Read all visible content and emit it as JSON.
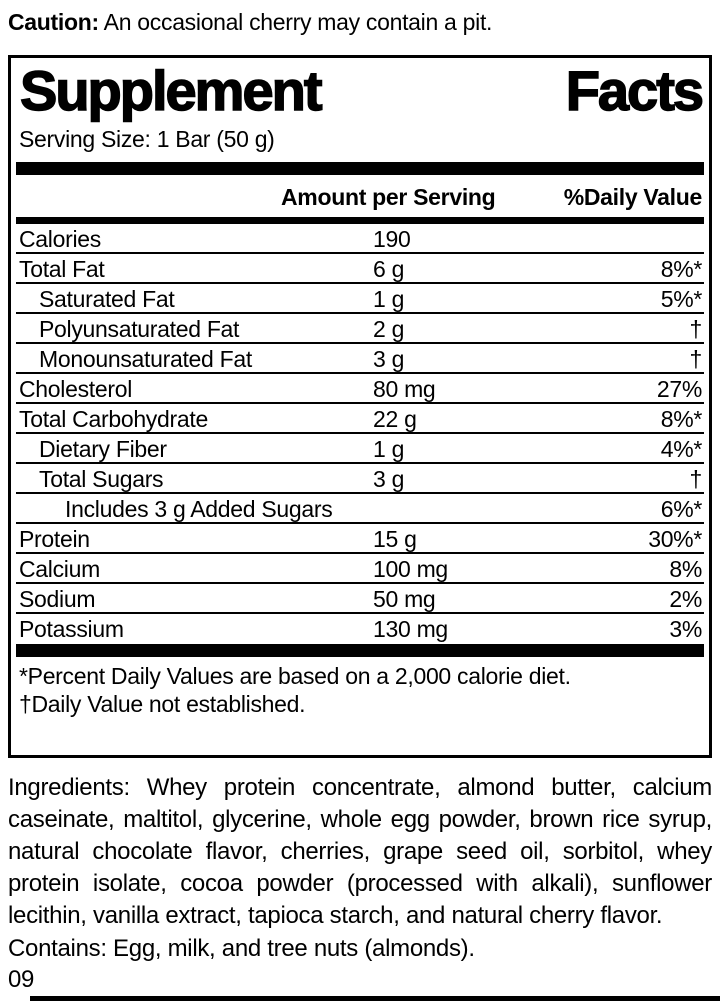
{
  "caution": {
    "label": "Caution:",
    "text": " An occasional cherry may contain a pit."
  },
  "panel": {
    "title": {
      "word1": "Supplement",
      "word2": "Facts"
    },
    "serving_size": "Serving Size: 1 Bar (50 g)",
    "header": {
      "amount": "Amount per Serving",
      "daily_value": "%Daily Value"
    },
    "rows": [
      {
        "name": "Calories",
        "amount": "190",
        "dv": "",
        "indent": 0
      },
      {
        "name": "Total Fat",
        "amount": "6 g",
        "dv": "8%*",
        "indent": 0
      },
      {
        "name": "Saturated Fat",
        "amount": "1 g",
        "dv": "5%*",
        "indent": 1
      },
      {
        "name": "Polyunsaturated Fat",
        "amount": "2 g",
        "dv": "†",
        "indent": 1
      },
      {
        "name": "Monounsaturated Fat",
        "amount": "3 g",
        "dv": "†",
        "indent": 1
      },
      {
        "name": "Cholesterol",
        "amount": "80 mg",
        "dv": "27%",
        "indent": 0
      },
      {
        "name": "Total Carbohydrate",
        "amount": "22 g",
        "dv": "8%*",
        "indent": 0
      },
      {
        "name": "Dietary Fiber",
        "amount": "1 g",
        "dv": "4%*",
        "indent": 1
      },
      {
        "name": "Total Sugars",
        "amount": "3 g",
        "dv": "†",
        "indent": 1
      },
      {
        "name": "Includes 3 g Added Sugars",
        "amount": "",
        "dv": "6%*",
        "indent": 2
      },
      {
        "name": "Protein",
        "amount": "15 g",
        "dv": "30%*",
        "indent": 0
      },
      {
        "name": "Calcium",
        "amount": "100 mg",
        "dv": "8%",
        "indent": 0
      },
      {
        "name": "Sodium",
        "amount": "50 mg",
        "dv": "2%",
        "indent": 0
      },
      {
        "name": "Potassium",
        "amount": "130 mg",
        "dv": "3%",
        "indent": 0
      }
    ],
    "footnotes": [
      "*Percent Daily Values are based on a 2,000 calorie diet.",
      "†Daily Value not established."
    ]
  },
  "ingredients": "Ingredients: Whey protein concentrate, almond butter, calcium caseinate, maltitol, glycerine, whole egg powder, brown rice syrup, natural chocolate flavor, cherries, grape seed oil, sorbitol, whey protein isolate, cocoa powder (processed with alkali), sunflower lecithin, vanilla extract, tapioca starch, and natural cherry flavor.",
  "contains": "Contains: Egg, milk, and tree nuts (almonds).",
  "lot_number": "09",
  "colors": {
    "ink": "#000000",
    "background": "#ffffff"
  }
}
